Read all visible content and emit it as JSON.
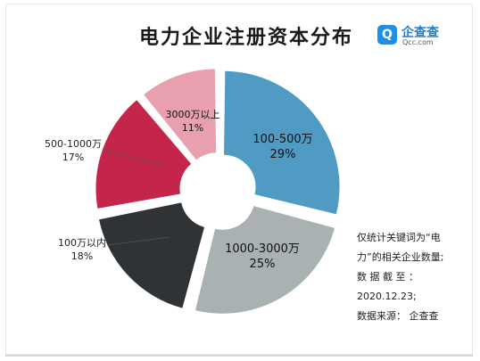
{
  "title": "电力企业注册资本分布",
  "brand": {
    "name": "企查查",
    "url": "Qcc.com",
    "mark": "Q"
  },
  "chart_data": {
    "type": "pie",
    "title": "电力企业注册资本分布",
    "categories": [
      "100-500万",
      "1000-3000万",
      "100万以内",
      "500-1000万",
      "3000万以上"
    ],
    "values": [
      29,
      25,
      18,
      17,
      11
    ],
    "percent_labels": [
      "29%",
      "25%",
      "18%",
      "17%",
      "11%"
    ],
    "colors": [
      "#4f9bc3",
      "#a9b1b3",
      "#2f3336",
      "#c4254a",
      "#e9a0ae"
    ]
  },
  "note_lines": [
    "仅统计关键词为“电",
    "力”的相关企业数量;",
    "数 据 截 至 ：",
    "2020.12.23;",
    "数据来源： 企查查"
  ]
}
